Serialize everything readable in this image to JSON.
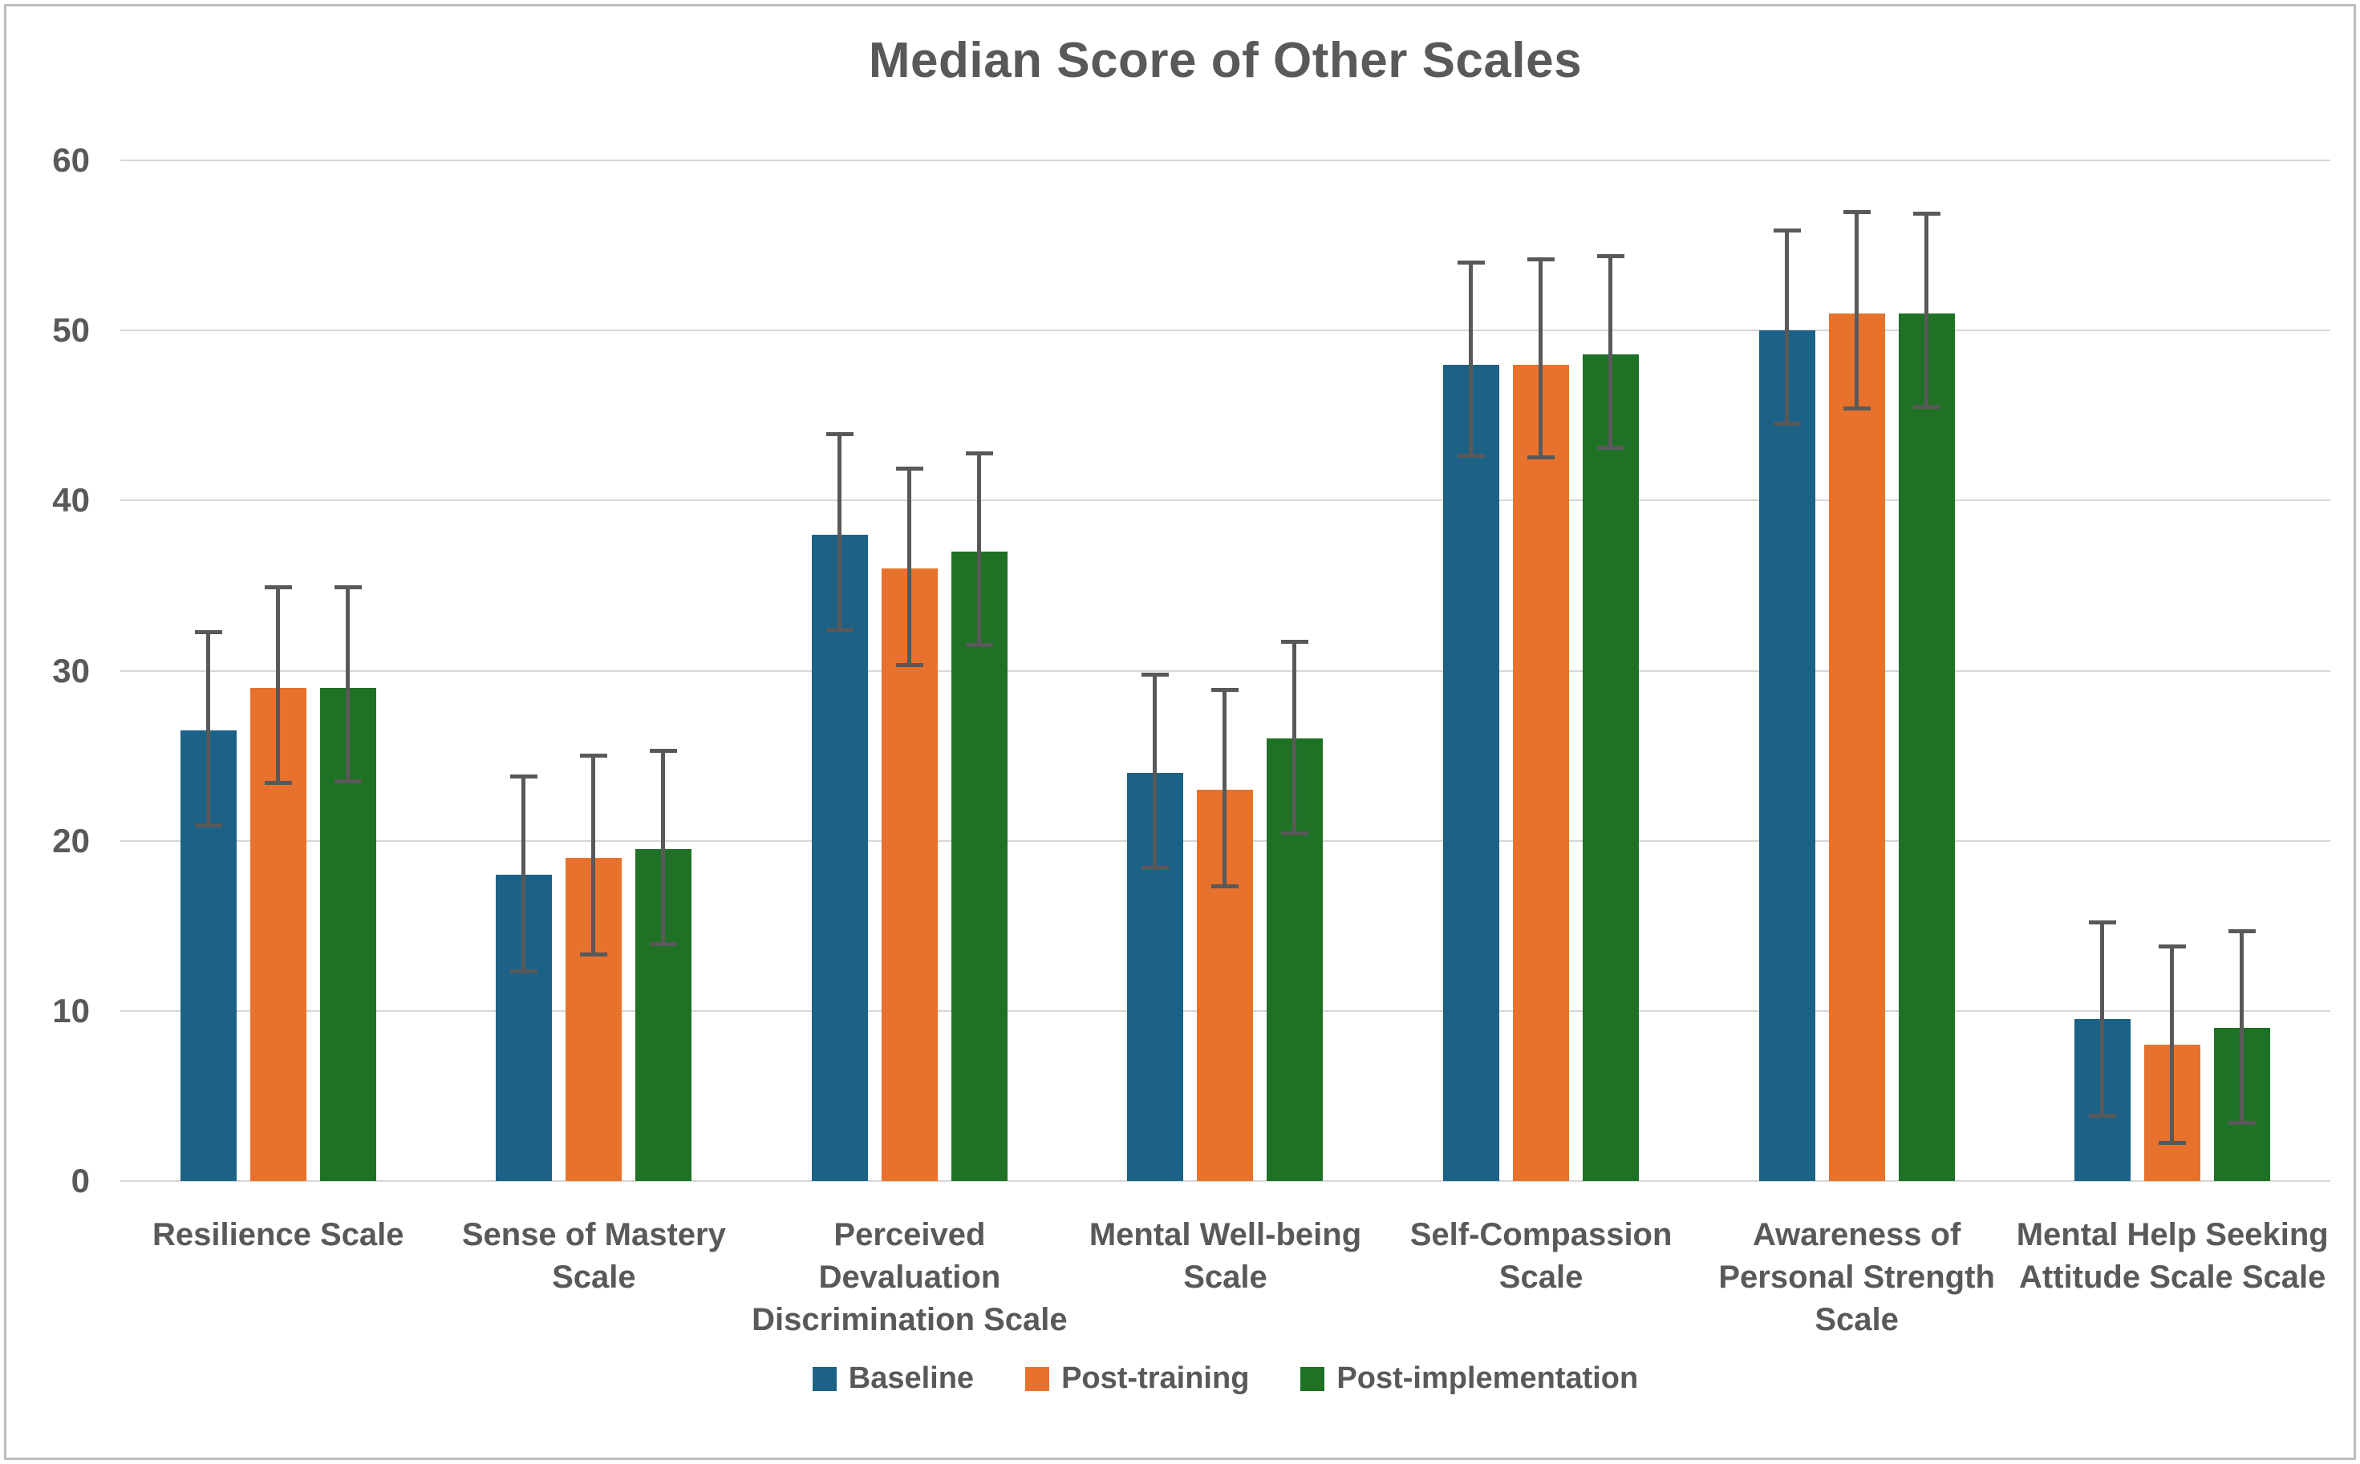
{
  "title": "Median Score of Other Scales",
  "colors": {
    "baseline": "#1c6286",
    "post_training": "#e7722d",
    "post_implementation": "#1e7125",
    "error_bar": "#595959",
    "gridline": "#d6d6d6",
    "text": "#595959",
    "frame_border": "#bdbdbd"
  },
  "chart_data": {
    "type": "bar",
    "title": "Median Score of Other Scales",
    "xlabel": "",
    "ylabel": "",
    "ylim": [
      0,
      60
    ],
    "yticks": [
      0,
      10,
      20,
      30,
      40,
      50,
      60
    ],
    "grid": "horizontal",
    "legend_position": "bottom",
    "error_bars": true,
    "categories": [
      "Resilience Scale",
      "Sense of Mastery Scale",
      "Perceived Devaluation Discrimination Scale",
      "Mental Well-being Scale",
      "Self-Compassion Scale",
      "Awareness of Personal Strength Scale",
      "Mental Help Seeking Attitude Scale Scale"
    ],
    "category_label_lines": [
      [
        "Resilience Scale"
      ],
      [
        "Sense of Mastery",
        "Scale"
      ],
      [
        "Perceived",
        "Devaluation",
        "Discrimination Scale"
      ],
      [
        "Mental Well-being",
        "Scale"
      ],
      [
        "Self-Compassion",
        "Scale"
      ],
      [
        "Awareness of",
        "Personal Strength",
        "Scale"
      ],
      [
        "Mental Help Seeking",
        "Attitude Scale Scale"
      ]
    ],
    "series": [
      {
        "name": "Baseline",
        "color": "#1c6286",
        "values": [
          26.5,
          18,
          38,
          24,
          48,
          50,
          9.5
        ],
        "error_low": [
          20.8,
          12.2,
          32.3,
          18.3,
          42.5,
          44.4,
          3.7
        ],
        "error_high": [
          32.4,
          23.9,
          44.0,
          29.9,
          54.1,
          56.0,
          15.3
        ]
      },
      {
        "name": "Post-training",
        "color": "#e7722d",
        "values": [
          29,
          19,
          36,
          23,
          48,
          51,
          8
        ],
        "error_low": [
          23.3,
          13.2,
          30.2,
          17.2,
          42.4,
          45.3,
          2.1
        ],
        "error_high": [
          35.0,
          25.1,
          42.0,
          29.0,
          54.3,
          57.1,
          13.9
        ]
      },
      {
        "name": "Post-implementation",
        "color": "#1e7125",
        "values": [
          29,
          19.5,
          37,
          26,
          48.6,
          51,
          9
        ],
        "error_low": [
          23.4,
          13.8,
          31.4,
          20.3,
          43.0,
          45.4,
          3.3
        ],
        "error_high": [
          35.0,
          25.4,
          42.9,
          31.8,
          54.5,
          57.0,
          14.8
        ]
      }
    ]
  }
}
